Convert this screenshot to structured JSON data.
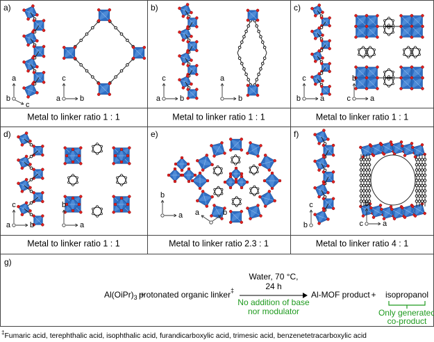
{
  "panels": [
    {
      "label": "a)",
      "caption": "Metal to linker ratio 1 : 1",
      "triads": [
        [
          "a",
          "b",
          "c"
        ],
        [
          "c",
          "a",
          "b"
        ]
      ]
    },
    {
      "label": "b)",
      "caption": "Metal to linker ratio 1 : 1",
      "triads": [
        [
          "c",
          "a",
          "b"
        ],
        [
          "a",
          "b"
        ]
      ]
    },
    {
      "label": "c)",
      "caption": "Metal to linker ratio 1 : 1",
      "triads": [
        [
          "c",
          "b",
          "a"
        ],
        [
          "b",
          "c",
          "a"
        ]
      ]
    },
    {
      "label": "d)",
      "caption": "Metal to linker ratio 1 : 1",
      "triads": [
        [
          "c",
          "a",
          "b"
        ],
        [
          "b",
          "a"
        ]
      ]
    },
    {
      "label": "e)",
      "caption": "Metal to linker ratio 2.3 : 1",
      "triads": [
        [
          "b",
          "a"
        ],
        [
          "a",
          "b"
        ]
      ]
    },
    {
      "label": "f)",
      "caption": "Metal to linker ratio 4 : 1",
      "triads": [
        [
          "c",
          "b"
        ],
        [
          "b",
          "c",
          "a"
        ]
      ]
    }
  ],
  "scheme": {
    "label": "g)",
    "reagent": "Al(OiPr)",
    "reagent_sub": "3",
    "plus": "+",
    "linker": "protonated organic linker",
    "dagger": "‡",
    "conditions": [
      "Water, 70 °C,",
      "24 h"
    ],
    "note": [
      "No addition of base",
      "nor modulator"
    ],
    "product": "Al-MOF product",
    "coproduct": "isopropanol",
    "coproduct_note": [
      "Only generated",
      "co-product"
    ]
  },
  "footnote": {
    "dagger": "‡",
    "text": "Fumaric acid, terephthalic acid, isophthalic acid, furandicarboxylic acid, trimesic acid, benzenetetracarboxylic acid"
  }
}
